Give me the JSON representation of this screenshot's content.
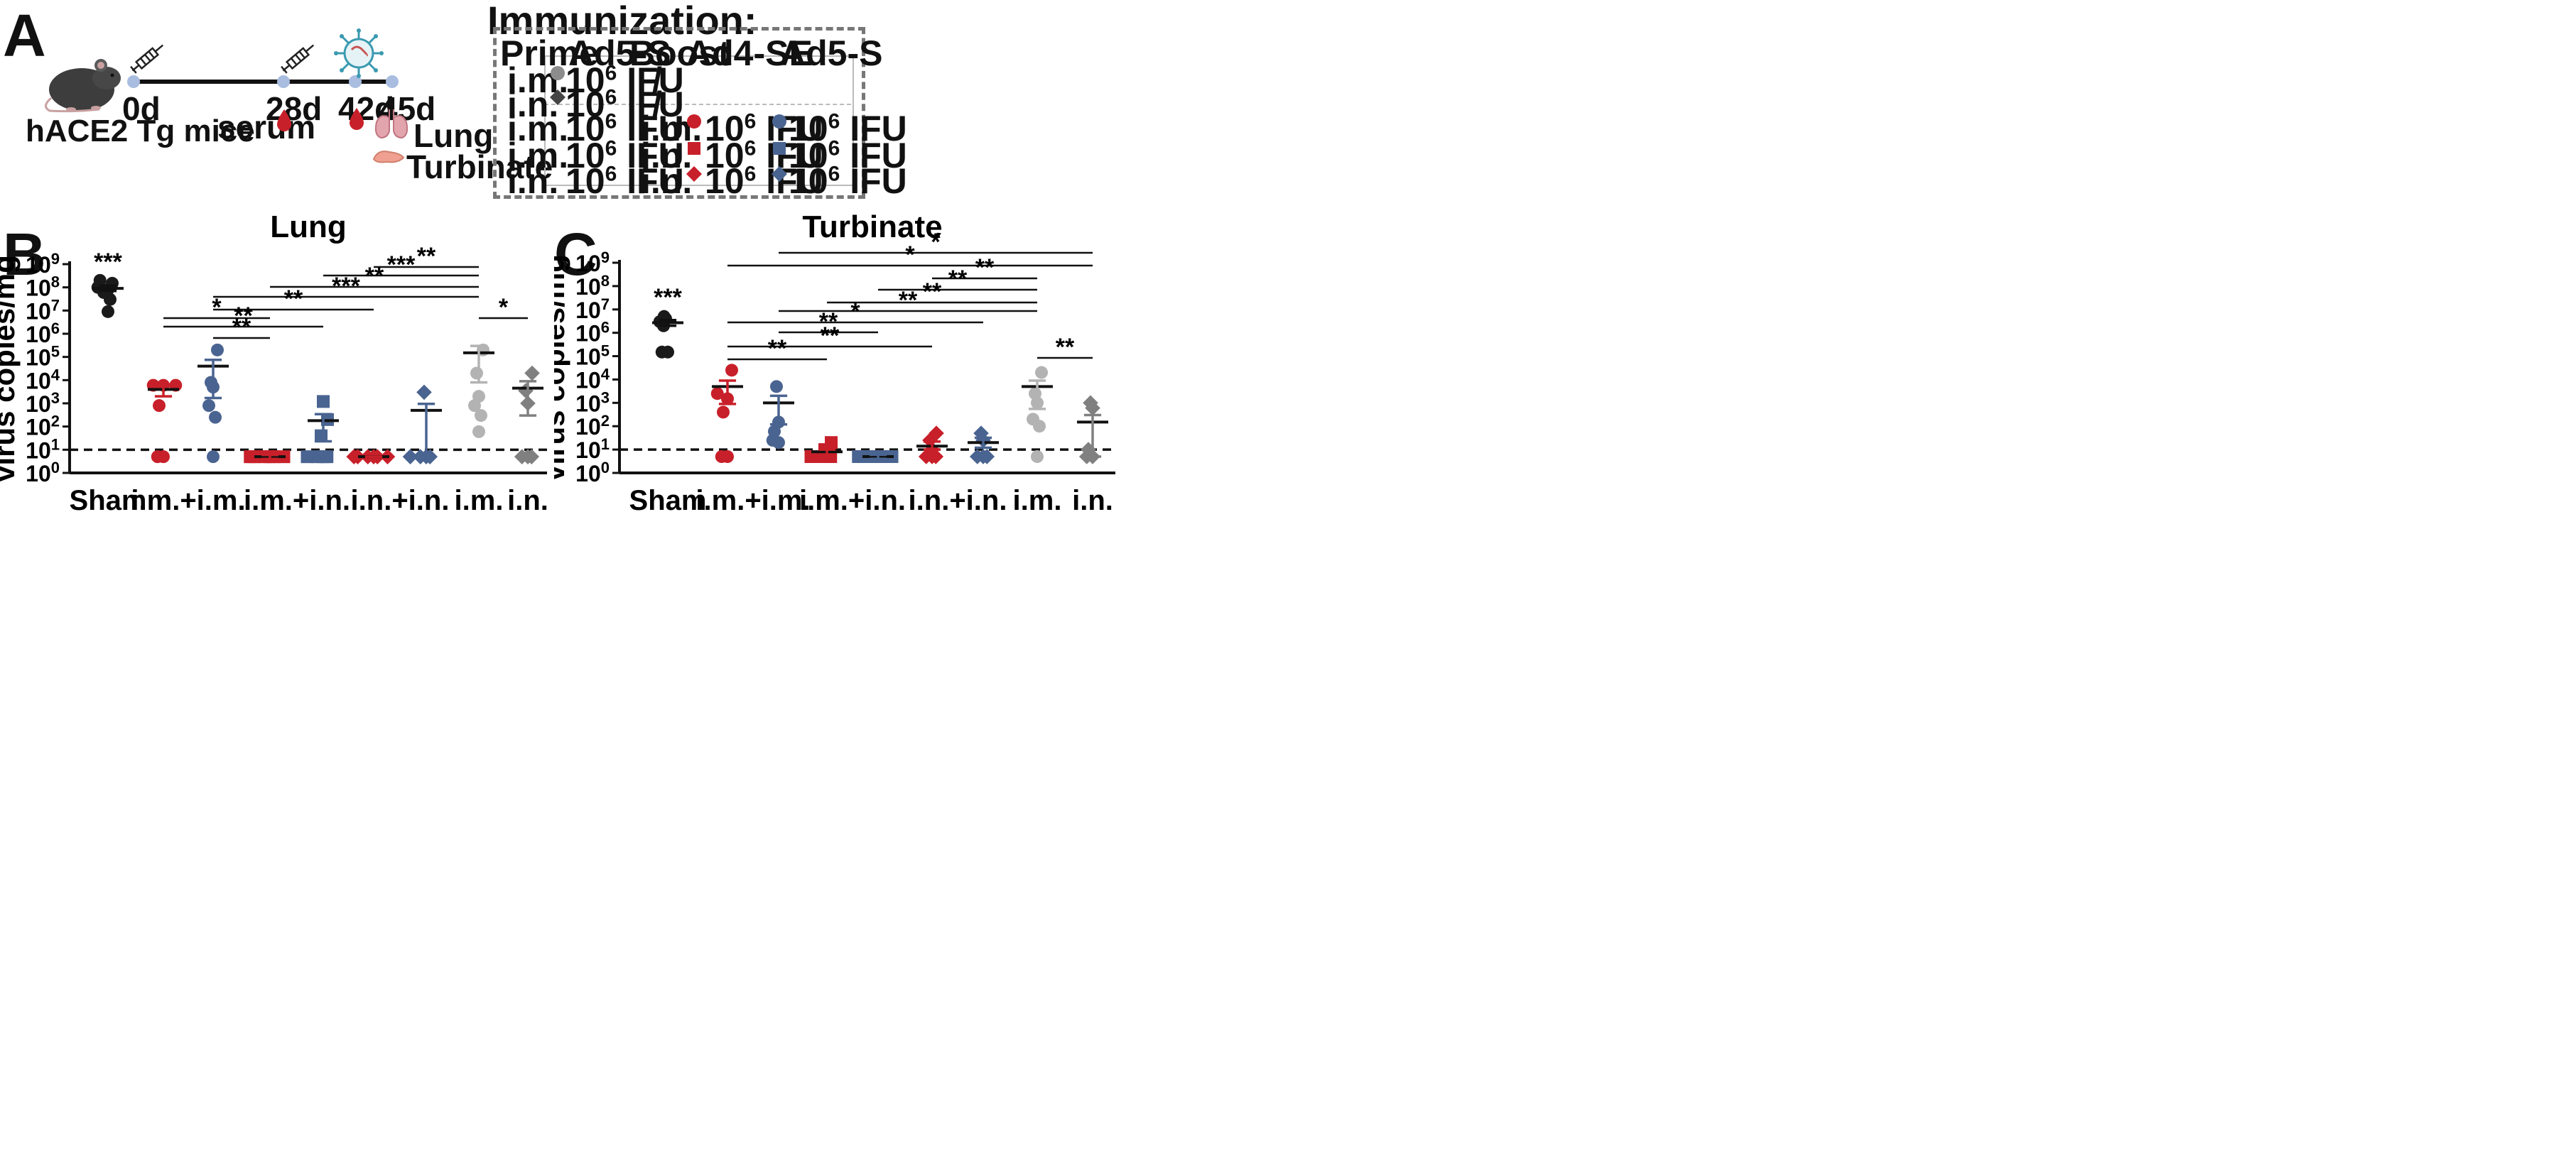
{
  "panel_a": {
    "letter": "A",
    "mouse_label": "hACE2 Tg mice",
    "timepoints": [
      "0d",
      "28d",
      "42d",
      "45d"
    ],
    "serum_label": "serum",
    "lung_label": "Lung",
    "turbinate_label": "Turbinate",
    "immunization_title": "Immunization:",
    "table": {
      "headers": [
        "Prime",
        "Ad5-S",
        "Boost",
        "Ad4-SE",
        "Ad5-S"
      ],
      "dose_base": "10",
      "dose_exp": "6",
      "dose_unit": " IFU",
      "slash": "/",
      "rows": [
        {
          "prime_route": "i.m.",
          "boost_route": ""
        },
        {
          "prime_route": "i.n.",
          "boost_route": ""
        },
        {
          "prime_route": "i.m.",
          "boost_route": "i.m."
        },
        {
          "prime_route": "i.m.",
          "boost_route": "i.n."
        },
        {
          "prime_route": "i.n.",
          "boost_route": "i.n."
        }
      ]
    }
  },
  "colors": {
    "sham": "#1a1a1a",
    "red": "#c8202a",
    "blue": "#4a6491",
    "gray": "#b3b3b3",
    "dark_gray": "#808080"
  },
  "chart_data": [
    {
      "panel": "B",
      "type": "scatter",
      "title": "Lung",
      "ylabel": "virus copies/mg",
      "yscale": "log10",
      "ylim_exp": [
        0,
        9
      ],
      "detection_limit": 10,
      "tick_base": "10",
      "x_tick_labels": [
        "Sham",
        "i.m.+i.m.",
        "i.m.+i.n.",
        "i.n.+i.n.",
        "i.m.",
        "i.n."
      ],
      "groups": [
        {
          "name": "Sham",
          "label": "***",
          "shape": "circle",
          "color": "#1a1a1a",
          "mean": 90000000,
          "sem": [
            70000000,
            120000000
          ],
          "points": [
            9000000,
            30000000,
            60000000,
            80000000,
            100000000,
            150000000,
            200000000
          ]
        },
        {
          "name": "Ad4-SE i.m.+i.m.",
          "shape": "circle",
          "color": "#c8202a",
          "mean": 4000,
          "sem": [
            2000,
            6000
          ],
          "points": [
            5,
            5,
            800,
            6000,
            6000,
            6000
          ]
        },
        {
          "name": "Ad5-S i.m.+i.m.",
          "shape": "circle",
          "color": "#4a6491",
          "mean": 40000,
          "sem": [
            1700,
            75000
          ],
          "points": [
            5,
            250,
            800,
            5000,
            8000,
            200000
          ]
        },
        {
          "name": "Ad4-SE i.m.+i.n.",
          "shape": "square",
          "color": "#c8202a",
          "mean": 5,
          "sem": [
            4,
            6
          ],
          "points": [
            5,
            5,
            5,
            5,
            5,
            5
          ]
        },
        {
          "name": "Ad5-S i.m.+i.n.",
          "shape": "square",
          "color": "#4a6491",
          "mean": 180,
          "sem": [
            23,
            340
          ],
          "points": [
            5,
            5,
            5,
            5,
            40,
            200,
            1200
          ]
        },
        {
          "name": "Ad4-SE i.n.+i.n.",
          "shape": "diamond",
          "color": "#c8202a",
          "mean": 5,
          "sem": [
            5,
            5
          ],
          "points": [
            5,
            5,
            5,
            5,
            5,
            5
          ]
        },
        {
          "name": "Ad5-S i.n.+i.n.",
          "shape": "diamond",
          "color": "#4a6491",
          "mean": 500,
          "sem": [
            5,
            950
          ],
          "points": [
            5,
            5,
            5,
            5,
            3000
          ]
        },
        {
          "name": "Ad5-S i.m.",
          "shape": "circle",
          "color": "#b3b3b3",
          "mean": 150000,
          "sem": [
            8000,
            300000
          ],
          "points": [
            60,
            300,
            800,
            2000,
            20000,
            200000
          ]
        },
        {
          "name": "Ad5-S i.n.",
          "shape": "diamond",
          "color": "#808080",
          "mean": 4500,
          "sem": [
            300,
            9000
          ],
          "points": [
            5,
            5,
            5,
            1000,
            3500,
            20000
          ]
        }
      ],
      "comparisons": [
        {
          "from": 5,
          "to": 7,
          "label": "**"
        },
        {
          "from": 4,
          "to": 7,
          "label": "***"
        },
        {
          "from": 3,
          "to": 7,
          "label": "**"
        },
        {
          "from": 2,
          "to": 7,
          "label": "***"
        },
        {
          "from": 2,
          "to": 5,
          "label": "**"
        },
        {
          "from": 1,
          "to": 3,
          "label": "*"
        },
        {
          "from": 7,
          "to": 8,
          "label": "*"
        },
        {
          "from": 1,
          "to": 4,
          "label": "**"
        },
        {
          "from": 2,
          "to": 3,
          "label": "**"
        }
      ]
    },
    {
      "panel": "C",
      "type": "scatter",
      "title": "Turbinate",
      "ylabel": "virus copies/mg",
      "yscale": "log10",
      "ylim_exp": [
        0,
        9
      ],
      "detection_limit": 10,
      "tick_base": "10",
      "x_tick_labels": [
        "Sham",
        "i.m.+i.m.",
        "i.m.+i.n.",
        "i.n.+i.n.",
        "i.m.",
        "i.n."
      ],
      "groups": [
        {
          "name": "Sham",
          "label": "***",
          "shape": "circle",
          "color": "#1a1a1a",
          "mean": 2700000,
          "sem": [
            2000000,
            3500000
          ],
          "points": [
            150000,
            150000,
            2000000,
            3000000,
            4000000,
            5000000
          ]
        },
        {
          "name": "Ad4-SE i.m.+i.m.",
          "shape": "circle",
          "color": "#c8202a",
          "mean": 5000,
          "sem": [
            900,
            9000
          ],
          "points": [
            5,
            5,
            400,
            1500,
            2500,
            25000
          ]
        },
        {
          "name": "Ad5-S i.m.+i.m.",
          "shape": "circle",
          "color": "#4a6491",
          "mean": 1000,
          "sem": [
            120,
            2000
          ],
          "points": [
            20,
            25,
            60,
            150,
            5000
          ]
        },
        {
          "name": "Ad4-SE i.m.+i.n.",
          "shape": "square",
          "color": "#c8202a",
          "mean": 8,
          "sem": [
            6,
            10
          ],
          "points": [
            5,
            5,
            5,
            5,
            10,
            20
          ]
        },
        {
          "name": "Ad5-S i.m.+i.n.",
          "shape": "square",
          "color": "#4a6491",
          "mean": 5,
          "sem": [
            4,
            6
          ],
          "points": [
            5,
            5,
            5,
            5,
            5,
            5
          ]
        },
        {
          "name": "Ad4-SE i.n.+i.n.",
          "shape": "diamond",
          "color": "#c8202a",
          "mean": 14,
          "sem": [
            10,
            22
          ],
          "points": [
            5,
            5,
            5,
            10,
            25,
            50
          ]
        },
        {
          "name": "Ad5-S i.n.+i.n.",
          "shape": "diamond",
          "color": "#4a6491",
          "mean": 20,
          "sem": [
            12,
            32
          ],
          "points": [
            5,
            5,
            5,
            25,
            50
          ]
        },
        {
          "name": "Ad5-S i.m.",
          "shape": "circle",
          "color": "#b3b3b3",
          "mean": 5000,
          "sem": [
            550,
            9000
          ],
          "points": [
            5,
            100,
            200,
            1000,
            2500,
            20000
          ]
        },
        {
          "name": "Ad5-S i.n.",
          "shape": "diamond",
          "color": "#808080",
          "mean": 150,
          "sem": [
            5,
            300
          ],
          "points": [
            5,
            5,
            10,
            600,
            1000
          ]
        }
      ],
      "comparisons": [
        {
          "from": 2,
          "to": 8,
          "label": "*"
        },
        {
          "from": 1,
          "to": 8,
          "label": "*"
        },
        {
          "from": 5,
          "to": 7,
          "label": "**"
        },
        {
          "from": 4,
          "to": 7,
          "label": "**"
        },
        {
          "from": 3,
          "to": 7,
          "label": "**"
        },
        {
          "from": 2,
          "to": 7,
          "label": "**"
        },
        {
          "from": 1,
          "to": 6,
          "label": "*"
        },
        {
          "from": 2,
          "to": 4,
          "label": "**"
        },
        {
          "from": 1,
          "to": 5,
          "label": "**"
        },
        {
          "from": 1,
          "to": 3,
          "label": "**"
        },
        {
          "from": 7,
          "to": 8,
          "label": "**"
        }
      ]
    }
  ]
}
